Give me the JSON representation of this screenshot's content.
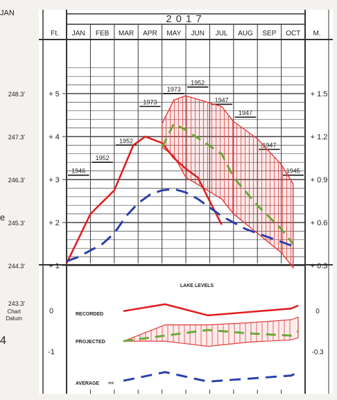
{
  "chart_data": {
    "type": "line",
    "year": "2017",
    "months": [
      "JAN",
      "FEB",
      "MAR",
      "APR",
      "MAY",
      "JUN",
      "JUL",
      "AUG",
      "SEP",
      "OCT"
    ],
    "left_unit": "Ft.",
    "right_unit": "M.",
    "left_ticks": [
      "+ 1",
      "+ 2",
      "+ 3",
      "+ 4",
      "+ 5"
    ],
    "left_elevations": [
      "244.3'",
      "245.3'",
      "246.3'",
      "247.3'",
      "248.3'"
    ],
    "chart_datum_label": [
      "243.3'",
      "Chart",
      "Datum"
    ],
    "right_ticks": [
      "+ 0.3",
      "+ 0.6",
      "+ 0.9",
      "+ 1.2",
      "+ 1.5"
    ],
    "range_notes": [
      "JAN",
      "e",
      "4"
    ],
    "main_panel": {
      "ylim_ft": [
        1,
        5.8
      ],
      "recorded": {
        "x": [
          0,
          0.35,
          1,
          2,
          2.8,
          3.3,
          4,
          4.5,
          5,
          5.5,
          6,
          6.5
        ],
        "y": [
          1.05,
          1.45,
          2.2,
          2.75,
          3.8,
          4.0,
          3.85,
          3.5,
          3.25,
          3.05,
          2.5,
          1.95
        ]
      },
      "projected": {
        "x": [
          4,
          4.5,
          5,
          6.5,
          7,
          8,
          9,
          9.5
        ],
        "y": [
          3.75,
          4.3,
          4.15,
          3.6,
          3.05,
          2.4,
          1.85,
          1.5
        ]
      },
      "projected_upper": [
        4.3,
        4.85,
        4.95,
        4.7,
        4.35,
        3.95,
        3.35,
        2.9
      ],
      "projected_lower": [
        3.75,
        3.55,
        3.05,
        2.55,
        2.2,
        1.75,
        1.3,
        0.95
      ],
      "average": {
        "x": [
          0,
          0.5,
          1,
          1.5,
          2,
          2.5,
          3,
          3.5,
          4,
          4.5,
          5,
          5.5,
          6,
          6.5,
          7,
          7.5,
          8,
          8.5,
          9,
          9.5
        ],
        "y": [
          1.1,
          1.2,
          1.35,
          1.5,
          1.75,
          2.15,
          2.45,
          2.65,
          2.75,
          2.78,
          2.7,
          2.55,
          2.35,
          2.15,
          2.0,
          1.85,
          1.75,
          1.65,
          1.55,
          1.45
        ]
      },
      "record_highs": [
        {
          "year": "1946",
          "month": 0,
          "level": 3.15
        },
        {
          "year": "1952",
          "month": 1,
          "level": 3.45
        },
        {
          "year": "1952",
          "month": 2,
          "level": 3.85
        },
        {
          "year": "1973",
          "month": 3,
          "level": 4.75
        },
        {
          "year": "1973",
          "month": 4,
          "level": 5.05
        },
        {
          "year": "1952",
          "month": 5,
          "level": 5.2
        },
        {
          "year": "1947",
          "month": 6,
          "level": 4.8
        },
        {
          "year": "1947",
          "month": 7,
          "level": 4.5
        },
        {
          "year": "1947",
          "month": 8,
          "level": 3.75
        },
        {
          "year": "1945",
          "month": 9,
          "level": 3.15
        }
      ]
    },
    "sub_panel": {
      "title": "LAKE LEVELS",
      "left_ticks": [
        "0",
        "-1"
      ],
      "right_ticks": [
        "0",
        "-0.3"
      ],
      "legend": [
        "RECORDED",
        "PROJECTED",
        "AVERAGE"
      ],
      "recorded": [
        0.02,
        0.18,
        -0.08,
        0.0,
        0.08,
        0.15
      ],
      "projected": [
        -0.68,
        -0.55,
        -0.42,
        -0.5,
        -0.55,
        -0.45
      ],
      "projected_upper": [
        -0.68,
        -0.3,
        -0.3,
        -0.25,
        -0.18,
        -0.12
      ],
      "projected_lower": [
        -0.68,
        -0.68,
        -0.8,
        -0.7,
        -0.65,
        -0.6
      ],
      "average": [
        -1.6,
        -1.4,
        -1.62,
        -1.55,
        -1.48,
        -1.4
      ]
    }
  }
}
